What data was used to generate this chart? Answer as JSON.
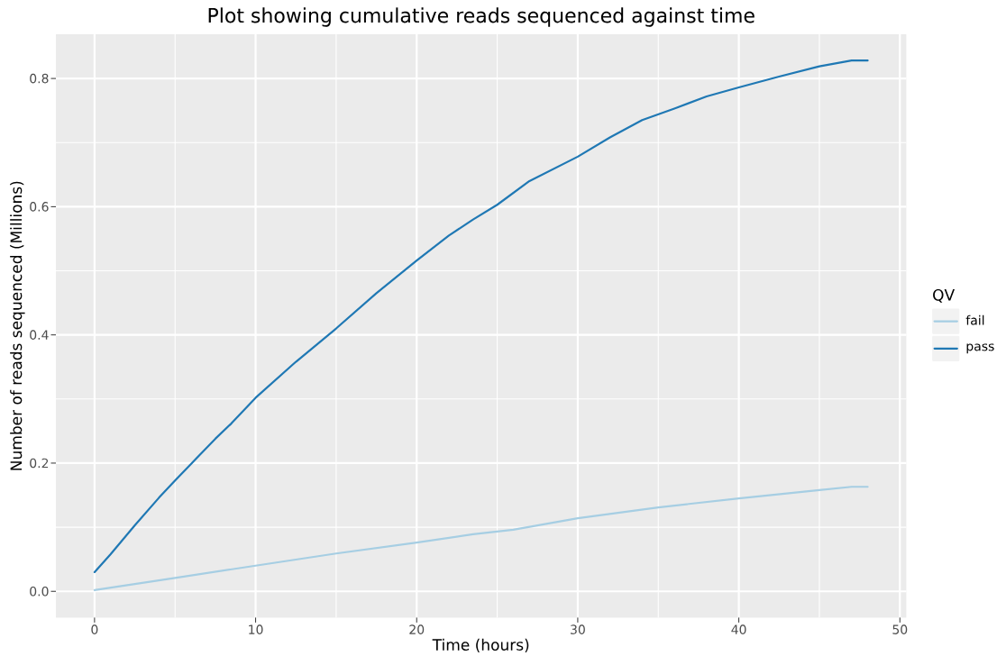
{
  "chart_data": {
    "type": "line",
    "title": "Plot showing cumulative reads sequenced against time",
    "xlabel": "Time (hours)",
    "ylabel": "Number of reads sequenced (Millions)",
    "legend_title": "QV",
    "series": [
      {
        "name": "fail",
        "color": "#a6cee3",
        "x": [
          0,
          5,
          10,
          15,
          20,
          23.5,
          26,
          30,
          35,
          40,
          45,
          47,
          48
        ],
        "values": [
          0.002,
          0.021,
          0.04,
          0.059,
          0.076,
          0.089,
          0.096,
          0.114,
          0.131,
          0.145,
          0.158,
          0.163,
          0.163
        ]
      },
      {
        "name": "pass",
        "color": "#1f78b4",
        "x": [
          0,
          1,
          2.5,
          4,
          5,
          6,
          7.5,
          8.5,
          10,
          12.5,
          15,
          17.5,
          20,
          22,
          23.5,
          25,
          27,
          30,
          32,
          34,
          36,
          38,
          40,
          42.5,
          45,
          47,
          48
        ],
        "values": [
          0.03,
          0.058,
          0.103,
          0.146,
          0.173,
          0.199,
          0.238,
          0.262,
          0.302,
          0.358,
          0.41,
          0.465,
          0.516,
          0.555,
          0.58,
          0.603,
          0.64,
          0.678,
          0.708,
          0.735,
          0.753,
          0.772,
          0.786,
          0.803,
          0.819,
          0.828,
          0.828
        ]
      }
    ],
    "xlim": [
      -2.4,
      50.4
    ],
    "ylim": [
      -0.041,
      0.869
    ],
    "xticks": [
      0,
      10,
      20,
      30,
      40,
      50
    ],
    "yticks": [
      {
        "value": 0,
        "label": "0.0"
      },
      0.2,
      0.4,
      0.6,
      0.8
    ],
    "grid": true,
    "legend": "right",
    "line_style": "solid"
  }
}
